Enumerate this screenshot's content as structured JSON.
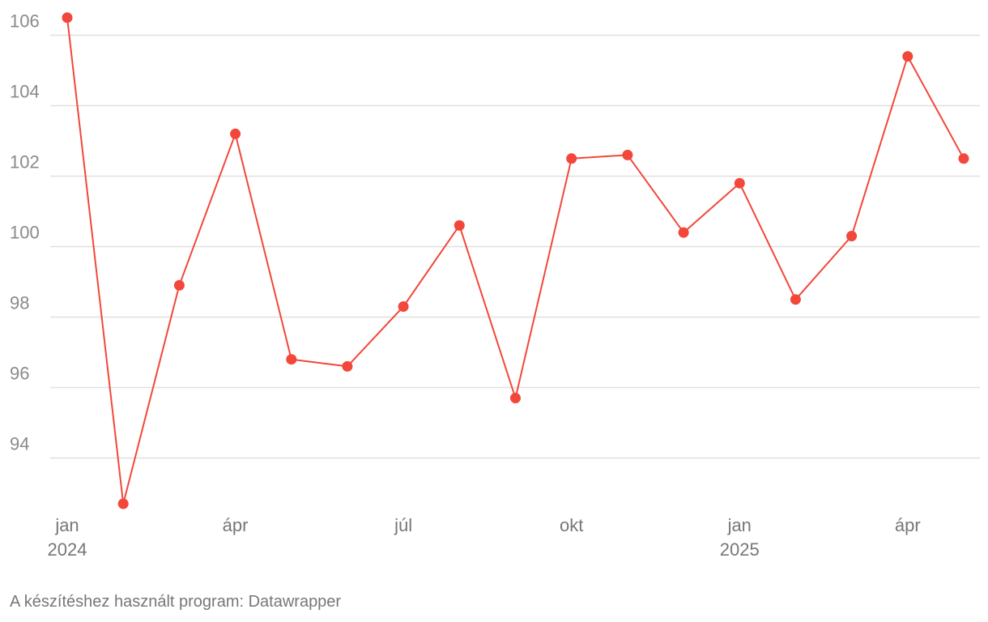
{
  "footer": {
    "credit": "A készítéshez használt program: Datawrapper"
  },
  "chart_data": {
    "type": "line",
    "title": "",
    "xlabel": "",
    "ylabel": "",
    "ylim": [
      92.6,
      106.5
    ],
    "yticks": [
      94,
      96,
      98,
      100,
      102,
      104,
      106
    ],
    "grid": true,
    "color": "#f2473a",
    "x": [
      "2024-01",
      "2024-02",
      "2024-03",
      "2024-04",
      "2024-05",
      "2024-06",
      "2024-07",
      "2024-08",
      "2024-09",
      "2024-10",
      "2024-11",
      "2024-12",
      "2025-01",
      "2025-02",
      "2025-03",
      "2025-04",
      "2025-05"
    ],
    "values": [
      106.5,
      92.7,
      98.9,
      103.2,
      96.8,
      96.6,
      98.3,
      100.6,
      95.7,
      102.5,
      102.6,
      100.4,
      101.8,
      98.5,
      100.3,
      105.4,
      102.5
    ],
    "xtick_labels": [
      {
        "index": 0,
        "line1": "jan",
        "line2": "2024"
      },
      {
        "index": 3,
        "line1": "ápr",
        "line2": ""
      },
      {
        "index": 6,
        "line1": "júl",
        "line2": ""
      },
      {
        "index": 9,
        "line1": "okt",
        "line2": ""
      },
      {
        "index": 12,
        "line1": "jan",
        "line2": "2025"
      },
      {
        "index": 15,
        "line1": "ápr",
        "line2": ""
      }
    ]
  }
}
